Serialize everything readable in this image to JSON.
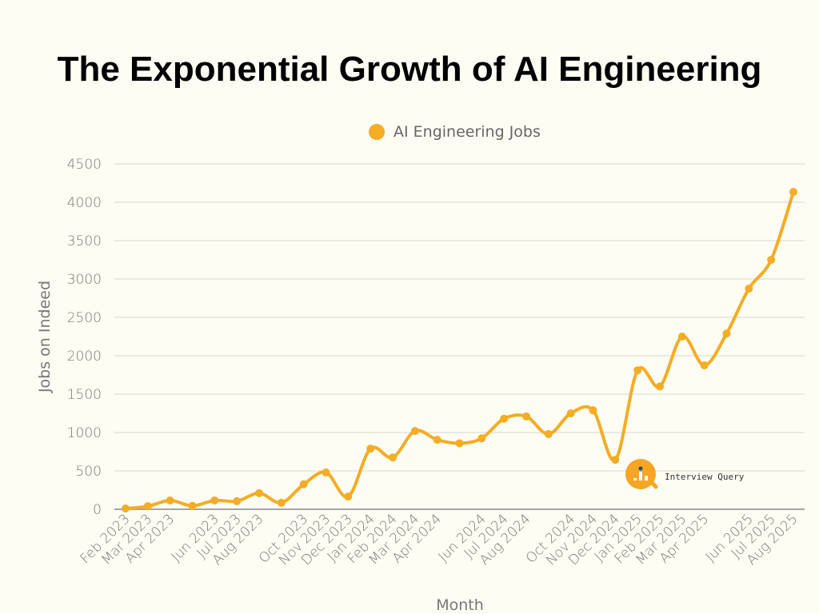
{
  "chart_data": {
    "type": "line",
    "title": "The Exponential Growth of AI Engineering",
    "xlabel": "Month",
    "ylabel": "Jobs on Indeed",
    "ylim": [
      0,
      4500
    ],
    "yticks": [
      0,
      500,
      1000,
      1500,
      2000,
      2500,
      3000,
      3500,
      4000,
      4500
    ],
    "grid": true,
    "legend_placement": "top-center",
    "x": [
      "Feb 2023",
      "Mar 2023",
      "Apr 2023",
      "May 2023",
      "Jun 2023",
      "Jul 2023",
      "Aug 2023",
      "Sep 2023",
      "Oct 2023",
      "Nov 2023",
      "Dec 2023",
      "Jan 2024",
      "Feb 2024",
      "Mar 2024",
      "Apr 2024",
      "May 2024",
      "Jun 2024",
      "Jul 2024",
      "Aug 2024",
      "Sep 2024",
      "Oct 2024",
      "Nov 2024",
      "Dec 2024",
      "Jan 2025",
      "Feb 2025",
      "Mar 2025",
      "Apr 2025",
      "May 2025",
      "Jun 2025",
      "Jul 2025",
      "Aug 2025"
    ],
    "x_tick_labels": [
      "Feb 2023",
      "Mar 2023",
      "Apr 2023",
      "",
      "Jun 2023",
      "Jul 2023",
      "Aug 2023",
      "",
      "Oct 2023",
      "Nov 2023",
      "Dec 2023",
      "Jan 2024",
      "Feb 2024",
      "Mar 2024",
      "Apr 2024",
      "",
      "Jun 2024",
      "Jul 2024",
      "Aug 2024",
      "",
      "Oct 2024",
      "Nov 2024",
      "Dec 2024",
      "Jan 2025",
      "Feb 2025",
      "Mar 2025",
      "Apr 2025",
      "",
      "Jun 2025",
      "Jul 2025",
      "Aug 2025"
    ],
    "series": [
      {
        "name": "AI Engineering Jobs",
        "color": "#f6ac23",
        "values": [
          10,
          40,
          115,
          45,
          115,
          105,
          210,
          85,
          325,
          480,
          165,
          790,
          675,
          1020,
          905,
          860,
          925,
          1180,
          1210,
          980,
          1250,
          1290,
          645,
          1810,
          1600,
          2250,
          1875,
          2290,
          2875,
          3250,
          4135
        ]
      }
    ]
  },
  "watermark": {
    "text": "Interview Query",
    "color": "#f6a623"
  }
}
